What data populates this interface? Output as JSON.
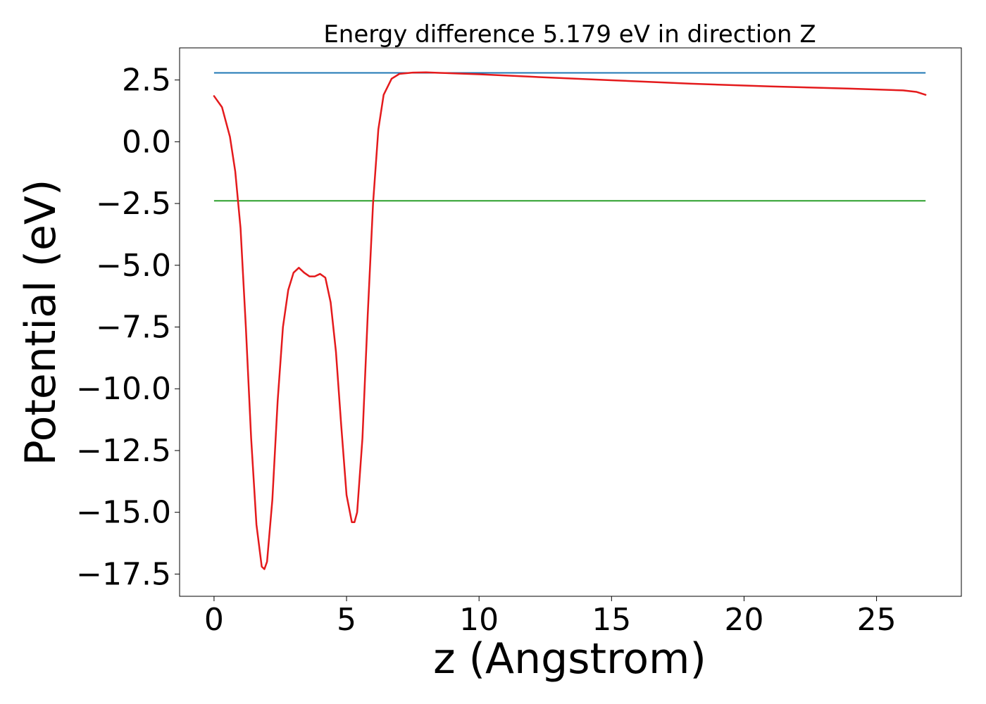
{
  "chart_data": {
    "type": "line",
    "title": "Energy difference 5.179 eV in direction Z",
    "xlabel": "z (Angstrom)",
    "ylabel": "Potential (eV)",
    "xlim": [
      -1.3,
      28.2
    ],
    "ylim": [
      -18.4,
      3.8
    ],
    "x_ticks": [
      0,
      5,
      10,
      15,
      20,
      25
    ],
    "x_tick_labels": [
      "0",
      "5",
      "10",
      "15",
      "20",
      "25"
    ],
    "y_ticks": [
      2.5,
      0.0,
      -2.5,
      -5.0,
      -7.5,
      -10.0,
      -12.5,
      -15.0,
      -17.5
    ],
    "y_tick_labels": [
      "2.5",
      "0.0",
      "−2.5",
      "−5.0",
      "−7.5",
      "−10.0",
      "−12.5",
      "−15.0",
      "−17.5"
    ],
    "grid": false,
    "legend": "none",
    "hlines": [
      {
        "y": 2.79,
        "xmin": 0,
        "xmax": 26.85,
        "color": "#1f77b4"
      },
      {
        "y": -2.39,
        "xmin": 0,
        "xmax": 26.85,
        "color": "#2ca02c"
      }
    ],
    "series": [
      {
        "color": "#e41a1c",
        "x": [
          0,
          0.3,
          0.6,
          0.8,
          1.0,
          1.2,
          1.4,
          1.6,
          1.8,
          1.9,
          2.0,
          2.2,
          2.4,
          2.6,
          2.8,
          3.0,
          3.2,
          3.4,
          3.6,
          3.8,
          4.0,
          4.2,
          4.4,
          4.6,
          4.8,
          5.0,
          5.2,
          5.3,
          5.4,
          5.6,
          5.8,
          6.0,
          6.2,
          6.4,
          6.7,
          7.0,
          7.5,
          8.0,
          8.5,
          10,
          12,
          15,
          18,
          21,
          24,
          26,
          26.5,
          26.85
        ],
        "y": [
          1.85,
          1.4,
          0.2,
          -1.2,
          -3.5,
          -7.5,
          -12.0,
          -15.5,
          -17.2,
          -17.3,
          -17.0,
          -14.5,
          -10.5,
          -7.5,
          -6.0,
          -5.3,
          -5.1,
          -5.3,
          -5.45,
          -5.45,
          -5.35,
          -5.5,
          -6.5,
          -8.5,
          -11.5,
          -14.3,
          -15.4,
          -15.4,
          -15.0,
          -12.0,
          -7.0,
          -2.5,
          0.5,
          1.9,
          2.55,
          2.75,
          2.8,
          2.81,
          2.79,
          2.73,
          2.63,
          2.49,
          2.35,
          2.24,
          2.15,
          2.08,
          2.02,
          1.9
        ]
      }
    ]
  }
}
